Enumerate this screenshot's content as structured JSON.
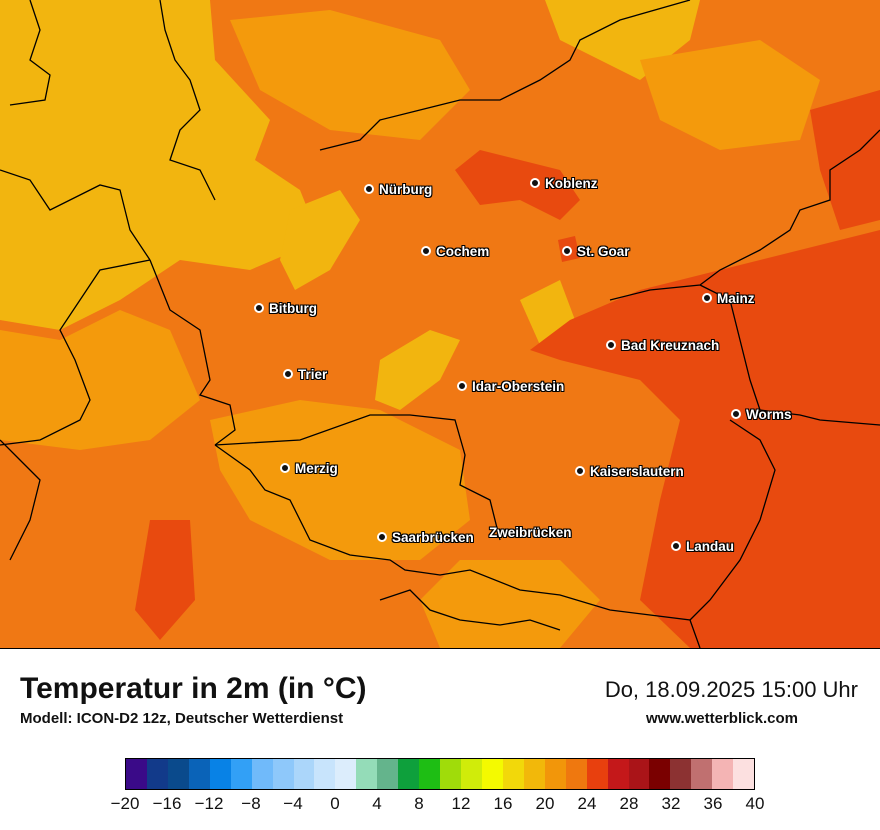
{
  "map": {
    "cities": [
      {
        "name": "Nürburg"
      },
      {
        "name": "Koblenz"
      },
      {
        "name": "Cochem"
      },
      {
        "name": "St. Goar"
      },
      {
        "name": "Bitburg"
      },
      {
        "name": "Mainz"
      },
      {
        "name": "Bad Kreuznach"
      },
      {
        "name": "Trier"
      },
      {
        "name": "Idar-Oberstein"
      },
      {
        "name": "Worms"
      },
      {
        "name": "Merzig"
      },
      {
        "name": "Kaiserslautern"
      },
      {
        "name": "Saarbrücken"
      },
      {
        "name": "Zweibrücken"
      },
      {
        "name": "Landau"
      }
    ],
    "colors": {
      "base": "#f07814",
      "cool_patches": "#f2b50f",
      "mid_patches": "#f49a0c",
      "warm_patches": "#e84a0f"
    }
  },
  "footer": {
    "title": "Temperatur in 2m (in °C)",
    "model": "Modell: ICON-D2 12z, Deutscher Wetterdienst",
    "datetime": "Do, 18.09.2025 15:00 Uhr",
    "website": "www.wetterblick.com"
  },
  "legend": {
    "ticks": [
      "−20",
      "−16",
      "−12",
      "−8",
      "−4",
      "0",
      "4",
      "8",
      "12",
      "16",
      "20",
      "24",
      "28",
      "32",
      "36",
      "40"
    ],
    "colors": [
      "#3a0a88",
      "#123a8a",
      "#0a4a8c",
      "#0a63b8",
      "#0882e6",
      "#32a0f6",
      "#70bafa",
      "#8ec8fa",
      "#abd6fa",
      "#c8e4fc",
      "#dcedfc",
      "#94dcb8",
      "#64b48c",
      "#0ea03c",
      "#1ebe14",
      "#a0dc0a",
      "#d0ec0a",
      "#f4fa00",
      "#f2d80a",
      "#f2b80a",
      "#f2960a",
      "#ef780f",
      "#e8400e",
      "#c4181a",
      "#aa1418",
      "#7a0000",
      "#8c3232",
      "#c07070",
      "#f4b4b4",
      "#fce0e0"
    ]
  }
}
